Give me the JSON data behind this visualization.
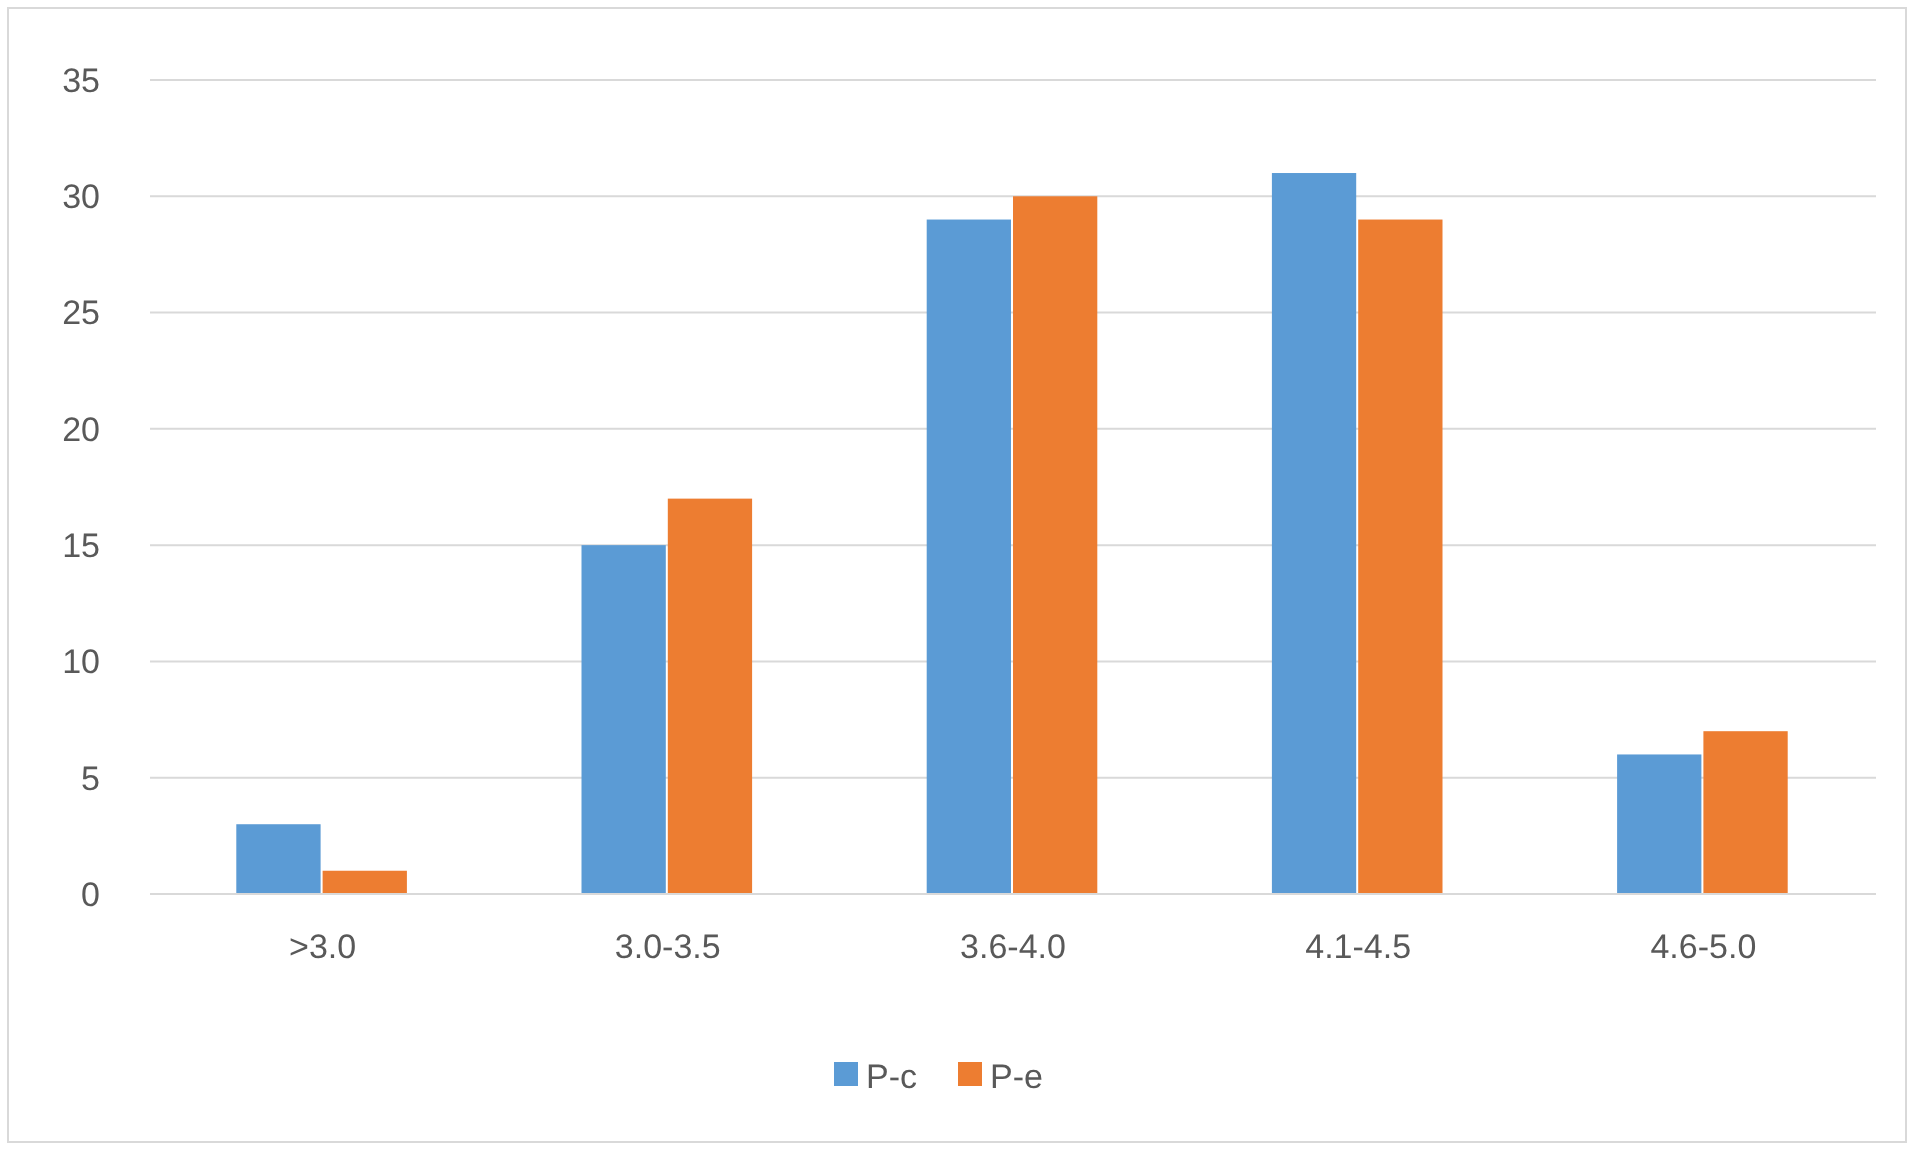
{
  "chart_data": {
    "type": "bar",
    "categories": [
      ">3.0",
      "3.0-3.5",
      "3.6-4.0",
      "4.1-4.5",
      "4.6-5.0"
    ],
    "series": [
      {
        "name": "P-c",
        "color": "#5b9bd5",
        "values": [
          3,
          15,
          29,
          31,
          6
        ]
      },
      {
        "name": "P-e",
        "color": "#ed7d31",
        "values": [
          1,
          17,
          30,
          29,
          7
        ]
      }
    ],
    "ylim": [
      0,
      35
    ],
    "yticks": [
      0,
      5,
      10,
      15,
      20,
      25,
      30,
      35
    ],
    "grid": "y",
    "legend": "bottom"
  }
}
